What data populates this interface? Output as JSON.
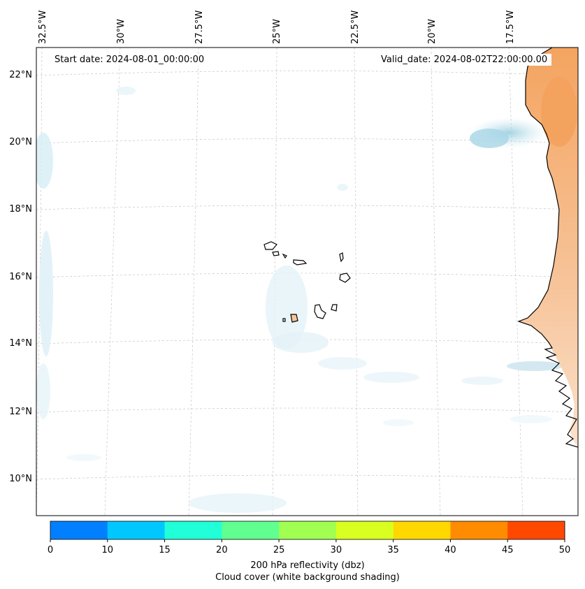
{
  "map": {
    "start_date": "Start date: 2024-08-01_00:00:00",
    "valid_date": "Valid_date: 2024-08-02T22:00:00.00",
    "lon_labels": [
      "32.5°W",
      "30°W",
      "27.5°W",
      "25°W",
      "22.5°W",
      "20°W",
      "17.5°W"
    ],
    "lat_labels": [
      "22°N",
      "20°N",
      "18°N",
      "16°N",
      "14°N",
      "12°N",
      "10°N"
    ],
    "land_color": "#f4a460",
    "cloud_color": "#add8e6",
    "coast_color": "#000000"
  },
  "colorbar": {
    "ticks": [
      "0",
      "10",
      "15",
      "20",
      "25",
      "30",
      "35",
      "40",
      "45",
      "50"
    ],
    "colors": [
      "#0080ff",
      "#00c8ff",
      "#20ffd8",
      "#60ff90",
      "#a0ff50",
      "#d8ff20",
      "#ffd800",
      "#ff8c00",
      "#ff4800"
    ],
    "label_line1": "200 hPa reflectivity (dbz)",
    "label_line2": "Cloud cover (white background shading)"
  }
}
